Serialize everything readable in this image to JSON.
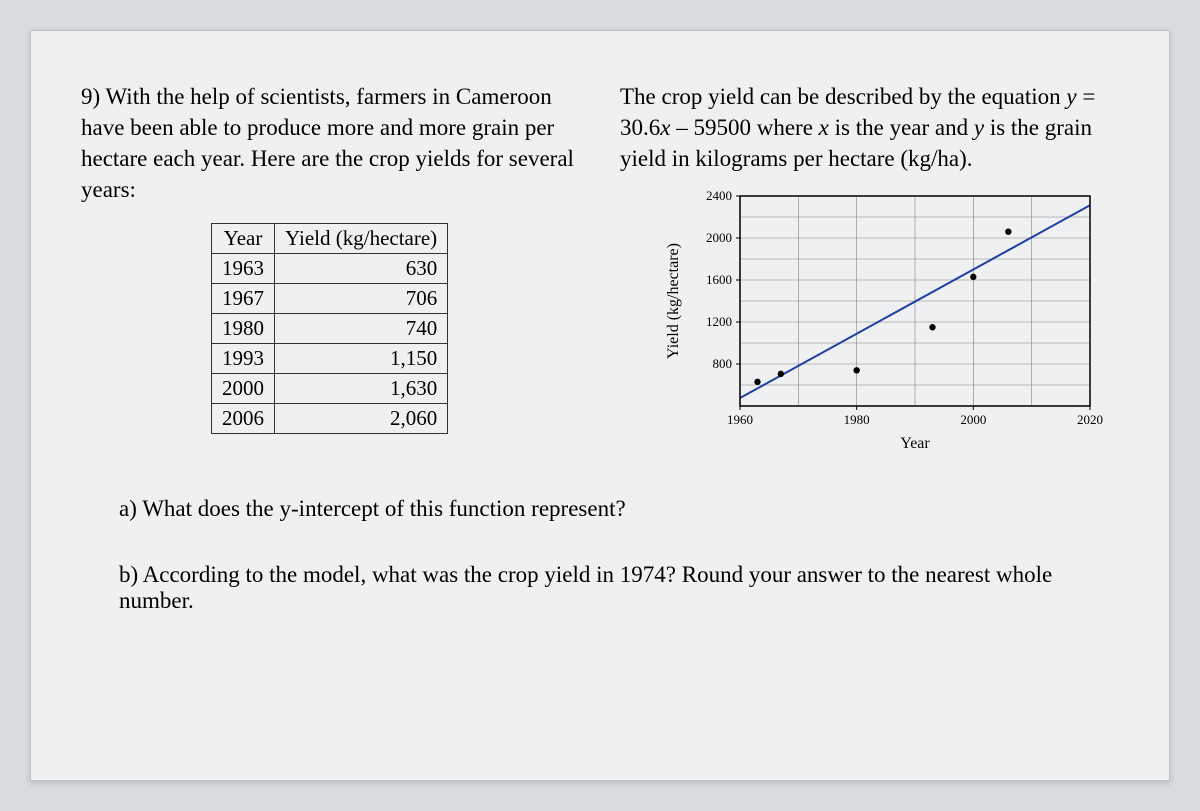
{
  "question_number": "9)",
  "intro_text": "With the help of scientists, farmers in Cameroon have been able to produce more and more grain per hectare each year. Here are the crop yields for several years:",
  "equation_text_pre": "The crop yield can be described by the equation ",
  "equation_y": "y",
  "equation_eq": " = 30.6",
  "equation_x": "x",
  "equation_post": " – 59500 where ",
  "equation_x2": "x",
  "equation_post2": " is the year and ",
  "equation_y2": "y",
  "equation_post3": " is the grain yield in kilograms per hectare (kg/ha).",
  "table": {
    "headers": [
      "Year",
      "Yield (kg/hectare)"
    ],
    "rows": [
      [
        "1963",
        "630"
      ],
      [
        "1967",
        "706"
      ],
      [
        "1980",
        "740"
      ],
      [
        "1993",
        "1,150"
      ],
      [
        "2000",
        "1,630"
      ],
      [
        "2006",
        "2,060"
      ]
    ]
  },
  "chart": {
    "type": "scatter-with-line",
    "xlabel": "Year",
    "ylabel": "Yield (kg/hectare)",
    "xlim": [
      1960,
      2020
    ],
    "ylim": [
      400,
      2400
    ],
    "xticks": [
      1960,
      1980,
      2000,
      2020
    ],
    "yticks": [
      800,
      1200,
      1600,
      2000,
      2400
    ],
    "xgrid_step": 10,
    "ygrid_step": 200,
    "background_color": "#eef0f2",
    "grid_color": "#808080",
    "axis_color": "#000000",
    "line_color": "#2040a0",
    "point_color": "#000000",
    "label_fontsize": 16,
    "tick_fontsize": 13,
    "points": [
      {
        "x": 1963,
        "y": 630
      },
      {
        "x": 1967,
        "y": 706
      },
      {
        "x": 1980,
        "y": 740
      },
      {
        "x": 1993,
        "y": 1150
      },
      {
        "x": 2000,
        "y": 1630
      },
      {
        "x": 2006,
        "y": 2060
      }
    ],
    "line": {
      "slope": 30.6,
      "intercept": -59500
    }
  },
  "sub_a": "a) What does the y-intercept of this function represent?",
  "sub_b": "b) According to the model, what was the crop yield in 1974?  Round your answer to the nearest whole number."
}
